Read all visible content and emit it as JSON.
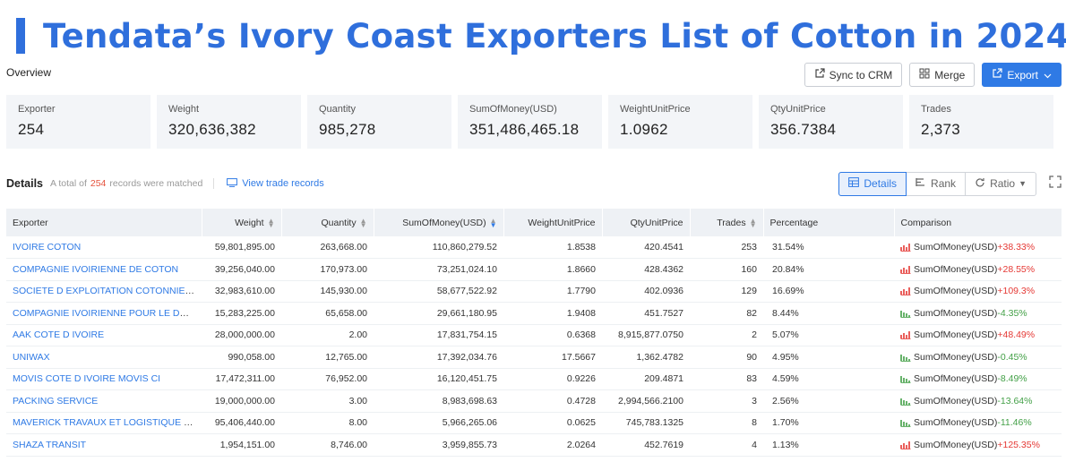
{
  "page": {
    "title": "Tendata’s Ivory Coast Exporters List of Cotton in 2024"
  },
  "overview": {
    "label": "Overview"
  },
  "actions": {
    "sync": "Sync to CRM",
    "merge": "Merge",
    "export": "Export"
  },
  "cards": [
    {
      "label": "Exporter",
      "value": "254"
    },
    {
      "label": "Weight",
      "value": "320,636,382"
    },
    {
      "label": "Quantity",
      "value": "985,278"
    },
    {
      "label": "SumOfMoney(USD)",
      "value": "351,486,465.18"
    },
    {
      "label": "WeightUnitPrice",
      "value": "1.0962"
    },
    {
      "label": "QtyUnitPrice",
      "value": "356.7384"
    },
    {
      "label": "Trades",
      "value": "2,373"
    }
  ],
  "details": {
    "title": "Details",
    "matched_prefix": "A total of",
    "matched_count": "254",
    "matched_suffix": "records were matched",
    "view_link": "View trade records",
    "tabs": [
      "Details",
      "Rank",
      "Ratio"
    ]
  },
  "colors": {
    "accent": "#2f7ae5",
    "up": "#e53935",
    "down": "#43a047"
  },
  "table": {
    "headers": [
      "Exporter",
      "Weight",
      "Quantity",
      "SumOfMoney(USD)",
      "WeightUnitPrice",
      "QtyUnitPrice",
      "Trades",
      "Percentage",
      "Comparison"
    ],
    "rows": [
      {
        "exporter": "IVOIRE COTON",
        "weight": "59,801,895.00",
        "quantity": "263,668.00",
        "sum": "110,860,279.52",
        "wup": "1.8538",
        "qup": "420.4541",
        "trades": "253",
        "pct": "31.54%",
        "cmp_label": "SumOfMoney(USD)",
        "cmp_val": "+38.33%",
        "dir": "up"
      },
      {
        "exporter": "COMPAGNIE IVOIRIENNE DE COTON",
        "weight": "39,256,040.00",
        "quantity": "170,973.00",
        "sum": "73,251,024.10",
        "wup": "1.8660",
        "qup": "428.4362",
        "trades": "160",
        "pct": "20.84%",
        "cmp_label": "SumOfMoney(USD)",
        "cmp_val": "+28.55%",
        "dir": "up"
      },
      {
        "exporter": "SOCIETE D EXPLOITATION COTONNIERE O",
        "weight": "32,983,610.00",
        "quantity": "145,930.00",
        "sum": "58,677,522.92",
        "wup": "1.7790",
        "qup": "402.0936",
        "trades": "129",
        "pct": "16.69%",
        "cmp_label": "SumOfMoney(USD)",
        "cmp_val": "+109.3%",
        "dir": "up"
      },
      {
        "exporter": "COMPAGNIE IVOIRIENNE POUR LE DEVELO...",
        "weight": "15,283,225.00",
        "quantity": "65,658.00",
        "sum": "29,661,180.95",
        "wup": "1.9408",
        "qup": "451.7527",
        "trades": "82",
        "pct": "8.44%",
        "cmp_label": "SumOfMoney(USD)",
        "cmp_val": "-4.35%",
        "dir": "down"
      },
      {
        "exporter": "AAK COTE D IVOIRE",
        "weight": "28,000,000.00",
        "quantity": "2.00",
        "sum": "17,831,754.15",
        "wup": "0.6368",
        "qup": "8,915,877.0750",
        "trades": "2",
        "pct": "5.07%",
        "cmp_label": "SumOfMoney(USD)",
        "cmp_val": "+48.49%",
        "dir": "up"
      },
      {
        "exporter": "UNIWAX",
        "weight": "990,058.00",
        "quantity": "12,765.00",
        "sum": "17,392,034.76",
        "wup": "17.5667",
        "qup": "1,362.4782",
        "trades": "90",
        "pct": "4.95%",
        "cmp_label": "SumOfMoney(USD)",
        "cmp_val": "-0.45%",
        "dir": "down"
      },
      {
        "exporter": "MOVIS COTE D IVOIRE MOVIS CI",
        "weight": "17,472,311.00",
        "quantity": "76,952.00",
        "sum": "16,120,451.75",
        "wup": "0.9226",
        "qup": "209.4871",
        "trades": "83",
        "pct": "4.59%",
        "cmp_label": "SumOfMoney(USD)",
        "cmp_val": "-8.49%",
        "dir": "down"
      },
      {
        "exporter": "PACKING SERVICE",
        "weight": "19,000,000.00",
        "quantity": "3.00",
        "sum": "8,983,698.63",
        "wup": "0.4728",
        "qup": "2,994,566.2100",
        "trades": "3",
        "pct": "2.56%",
        "cmp_label": "SumOfMoney(USD)",
        "cmp_val": "-13.64%",
        "dir": "down"
      },
      {
        "exporter": "MAVERICK TRAVAUX ET LOGISTIQUE SA",
        "weight": "95,406,440.00",
        "quantity": "8.00",
        "sum": "5,966,265.06",
        "wup": "0.0625",
        "qup": "745,783.1325",
        "trades": "8",
        "pct": "1.70%",
        "cmp_label": "SumOfMoney(USD)",
        "cmp_val": "-11.46%",
        "dir": "down"
      },
      {
        "exporter": "SHAZA TRANSIT",
        "weight": "1,954,151.00",
        "quantity": "8,746.00",
        "sum": "3,959,855.73",
        "wup": "2.0264",
        "qup": "452.7619",
        "trades": "4",
        "pct": "1.13%",
        "cmp_label": "SumOfMoney(USD)",
        "cmp_val": "+125.35%",
        "dir": "up"
      }
    ]
  }
}
